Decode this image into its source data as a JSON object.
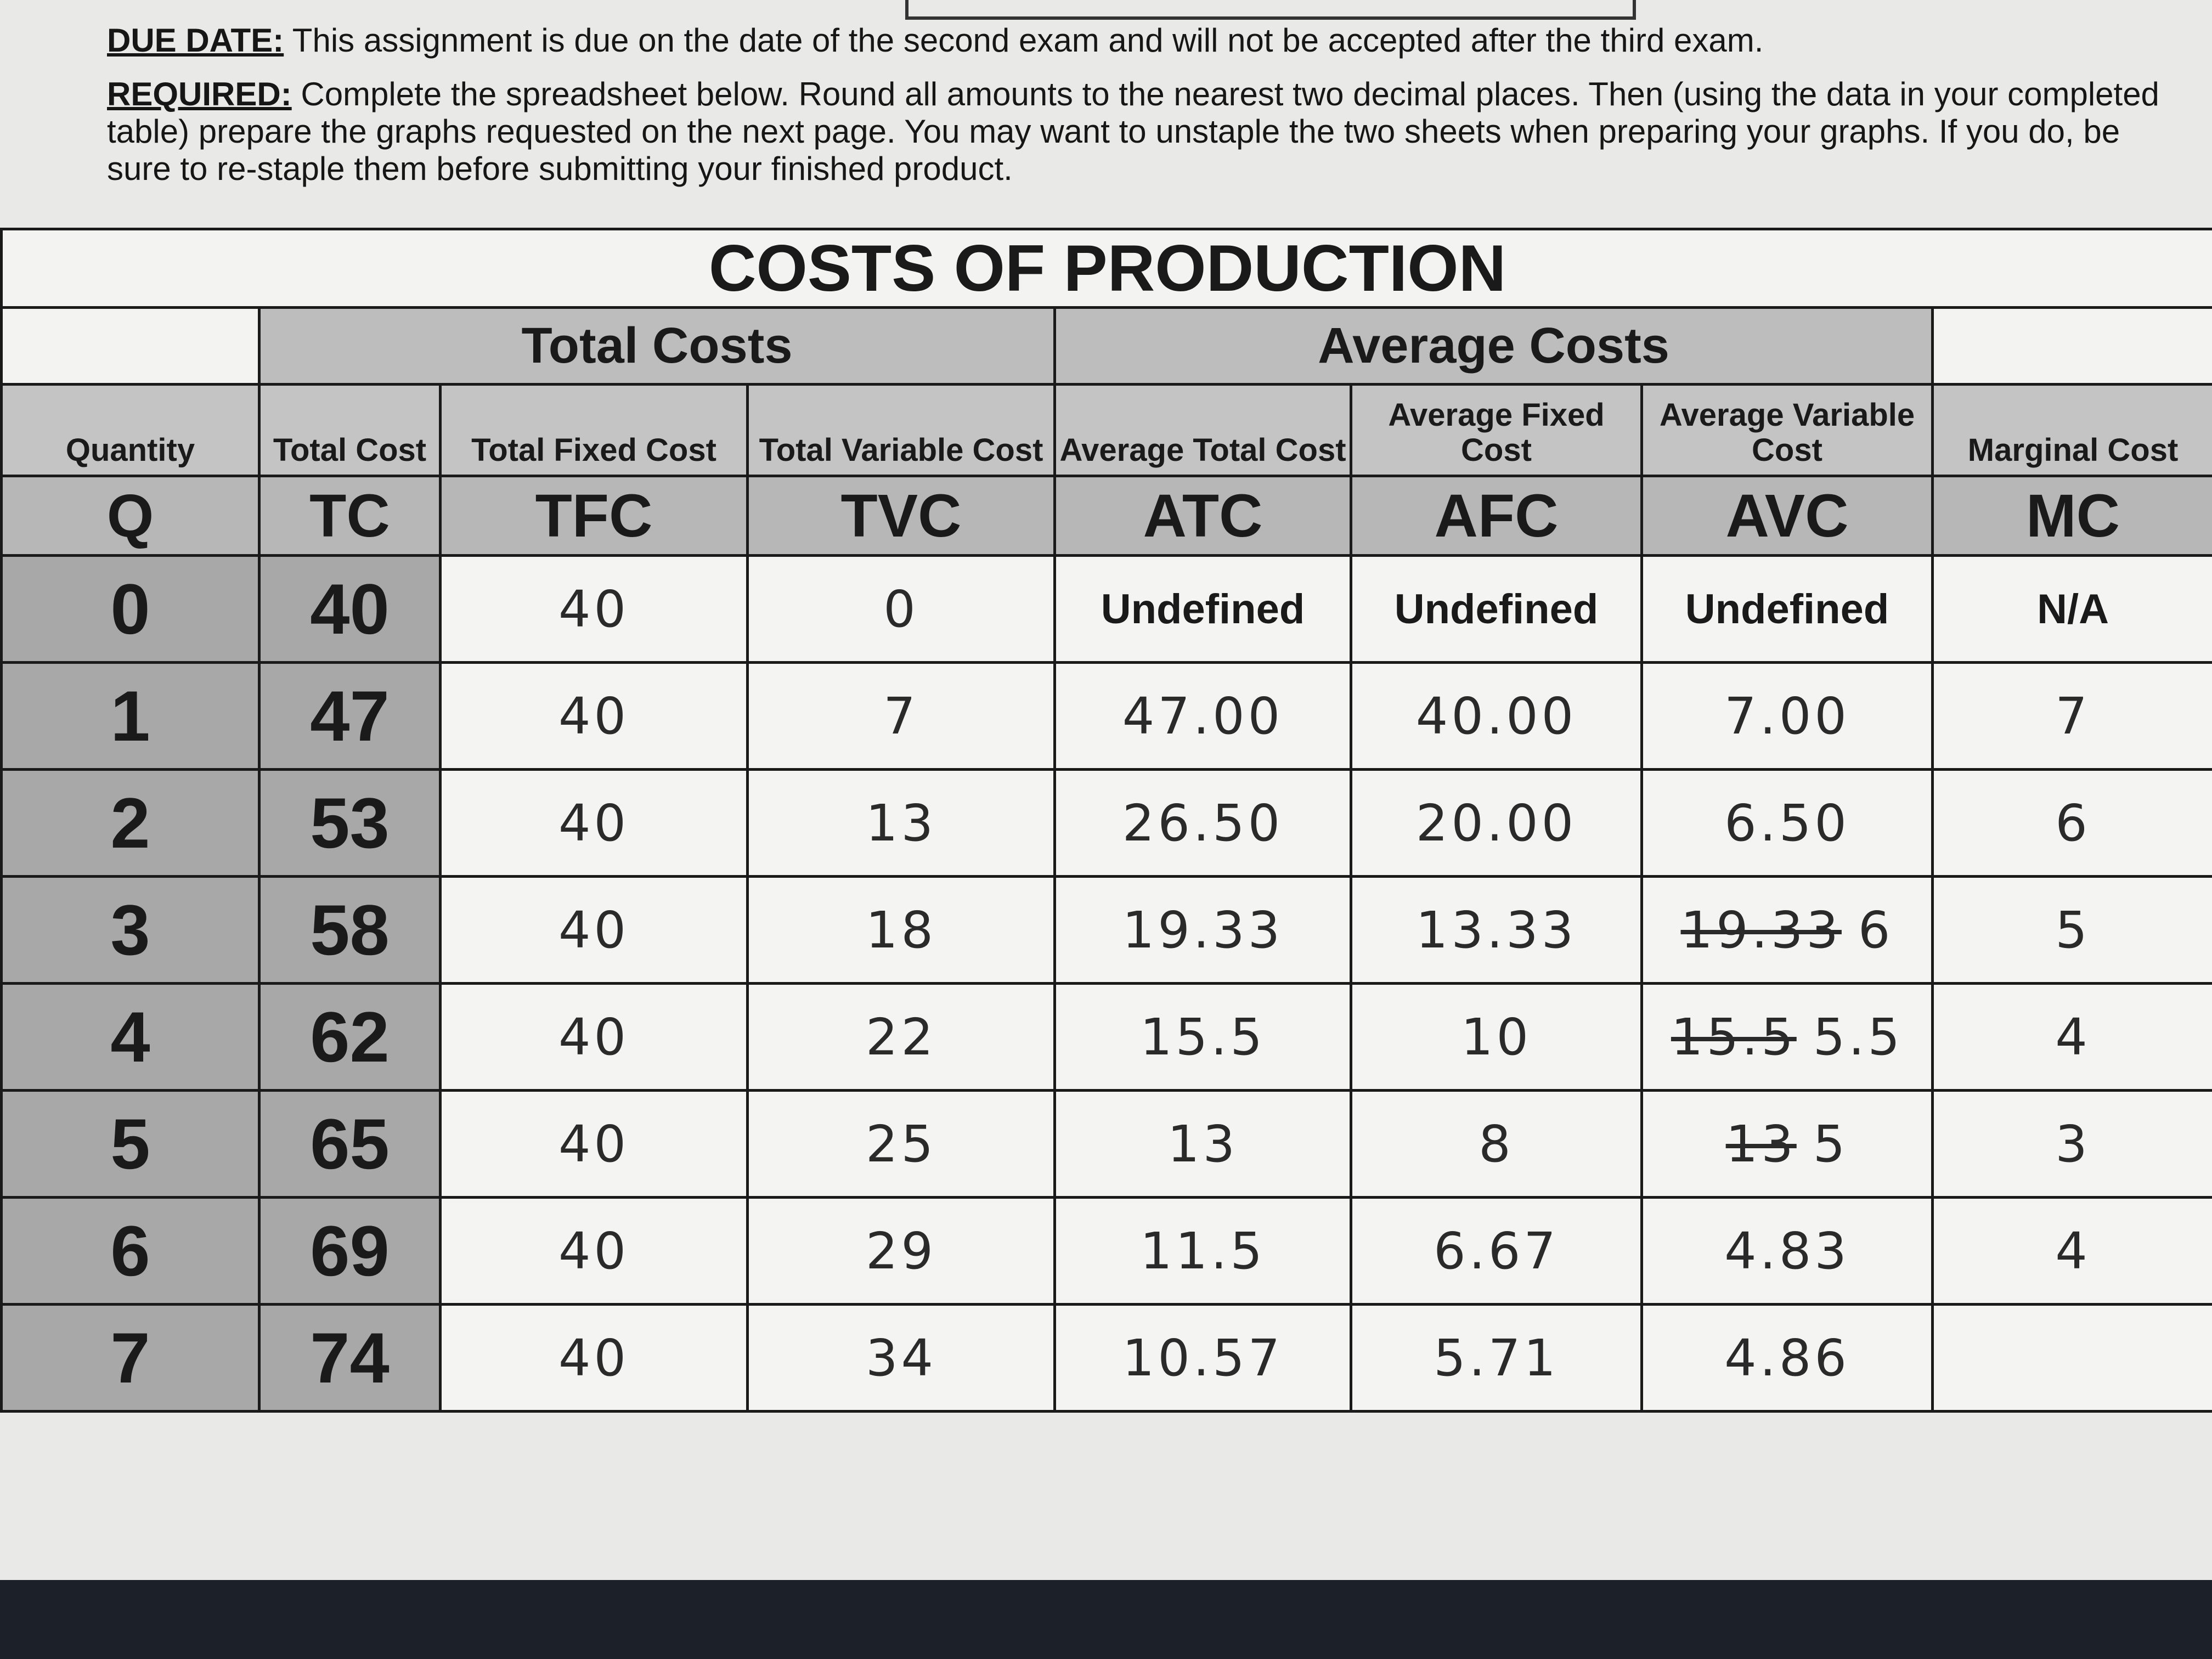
{
  "instructions": {
    "due_label": "DUE DATE:",
    "due_text": " This assignment is due on the date of the second exam and will not be accepted after the third exam.",
    "required_label": "REQUIRED:",
    "required_text": " Complete the spreadsheet below. Round all amounts to the nearest two decimal places. Then (using the data in your completed table) prepare the graphs requested on the next page. You may want to unstaple the two sheets when preparing your graphs. If you do, be sure to re-staple them before submitting your finished product."
  },
  "table": {
    "title": "COSTS OF PRODUCTION",
    "group_total": "Total Costs",
    "group_average": "Average Costs",
    "headers": [
      "Quantity",
      "Total Cost",
      "Total Fixed Cost",
      "Total Variable Cost",
      "Average Total Cost",
      "Average Fixed Cost",
      "Average Variable Cost",
      "Marginal Cost"
    ],
    "abbr": [
      "Q",
      "TC",
      "TFC",
      "TVC",
      "ATC",
      "AFC",
      "AVC",
      "MC"
    ],
    "rows": [
      {
        "q": "0",
        "tc": "40",
        "tfc": "40",
        "tvc": "0",
        "atc": "Undefined",
        "afc": "Undefined",
        "avc": "Undefined",
        "mc": "N/A"
      },
      {
        "q": "1",
        "tc": "47",
        "tfc": "40",
        "tvc": "7",
        "atc": "47.00",
        "afc": "40.00",
        "avc": "7.00",
        "mc": "7"
      },
      {
        "q": "2",
        "tc": "53",
        "tfc": "40",
        "tvc": "13",
        "atc": "26.50",
        "afc": "20.00",
        "avc": "6.50",
        "mc": "6"
      },
      {
        "q": "3",
        "tc": "58",
        "tfc": "40",
        "tvc": "18",
        "atc": "19.33",
        "afc": "13.33",
        "avc_struck": "19.33",
        "avc": "6",
        "mc": "5"
      },
      {
        "q": "4",
        "tc": "62",
        "tfc": "40",
        "tvc": "22",
        "atc": "15.5",
        "afc": "10",
        "avc_struck": "15.5",
        "avc": "5.5",
        "mc": "4"
      },
      {
        "q": "5",
        "tc": "65",
        "tfc": "40",
        "tvc": "25",
        "atc": "13",
        "afc": "8",
        "avc_struck": "13",
        "avc": "5",
        "mc": "3"
      },
      {
        "q": "6",
        "tc": "69",
        "tfc": "40",
        "tvc": "29",
        "atc": "11.5",
        "afc": "6.67",
        "avc": "4.83",
        "mc": "4"
      },
      {
        "q": "7",
        "tc": "74",
        "tfc": "40",
        "tvc": "34",
        "atc": "10.57",
        "afc": "5.71",
        "avc": "4.86",
        "mc": ""
      }
    ]
  }
}
